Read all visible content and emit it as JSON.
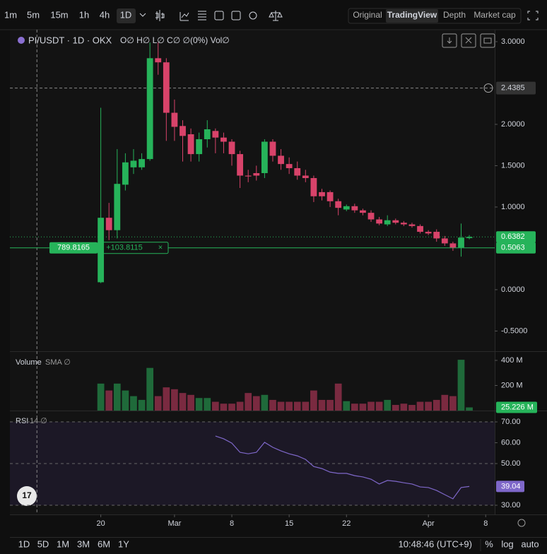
{
  "toolbar": {
    "intervals": [
      "1m",
      "5m",
      "15m",
      "1h",
      "4h",
      "1D"
    ],
    "views": [
      "Original",
      "TradingView",
      "Depth",
      "Market cap"
    ]
  },
  "chart_data": {
    "type": "candlestick",
    "title": "PI/USDT · 1D · OKX",
    "legend": "O∅ H∅ L∅ C∅ ∅(0%) Vol∅",
    "up_color": "#26b35a",
    "down_color": "#d8436a",
    "open": [
      0.09,
      0.87,
      0.72,
      1.27,
      1.48,
      1.48,
      1.58,
      2.8,
      2.75,
      2.14,
      1.98,
      1.88,
      1.64,
      1.82,
      1.92,
      1.84,
      1.79,
      1.64,
      1.38,
      1.41,
      1.41,
      1.79,
      1.62,
      1.52,
      1.47,
      1.38,
      1.35,
      1.18,
      1.18,
      1.07,
      0.97,
      1.01,
      0.96,
      0.93,
      0.85,
      0.79,
      0.84,
      0.81,
      0.79,
      0.77,
      0.7,
      0.7,
      0.62,
      0.56,
      0.51,
      0.624
    ],
    "high": [
      2.2,
      1.05,
      1.7,
      1.65,
      1.7,
      1.65,
      2.99,
      2.99,
      2.8,
      2.3,
      2.05,
      1.95,
      1.9,
      2.05,
      1.95,
      1.9,
      1.82,
      1.68,
      1.45,
      1.5,
      1.82,
      1.82,
      1.7,
      1.6,
      1.55,
      1.45,
      1.38,
      1.22,
      1.2,
      1.1,
      1.03,
      1.04,
      0.98,
      0.96,
      0.88,
      0.9,
      0.86,
      0.83,
      0.81,
      0.79,
      0.72,
      0.73,
      0.65,
      0.58,
      0.8,
      0.66
    ],
    "low": [
      0.08,
      0.6,
      0.62,
      1.2,
      1.4,
      1.45,
      1.56,
      2.6,
      1.8,
      1.8,
      1.55,
      1.55,
      1.55,
      1.72,
      1.65,
      1.65,
      1.5,
      1.23,
      1.3,
      1.32,
      1.35,
      1.55,
      1.45,
      1.4,
      1.33,
      1.3,
      1.06,
      1.08,
      1.0,
      0.9,
      0.95,
      0.93,
      0.9,
      0.82,
      0.78,
      0.77,
      0.79,
      0.77,
      0.75,
      0.68,
      0.66,
      0.58,
      0.53,
      0.47,
      0.4,
      0.61
    ],
    "close": [
      0.87,
      0.72,
      1.28,
      1.54,
      1.56,
      1.58,
      2.8,
      2.75,
      2.14,
      1.97,
      1.86,
      1.64,
      1.82,
      1.94,
      1.84,
      1.79,
      1.64,
      1.38,
      1.37,
      1.38,
      1.79,
      1.62,
      1.52,
      1.47,
      1.38,
      1.35,
      1.13,
      1.13,
      1.07,
      0.99,
      1.01,
      0.96,
      0.93,
      0.85,
      0.8,
      0.84,
      0.81,
      0.79,
      0.77,
      0.7,
      0.68,
      0.62,
      0.56,
      0.51,
      0.63,
      0.638
    ],
    "xlim": [
      -11.1,
      48.1
    ],
    "xticks": [
      {
        "value": 0,
        "label": "20"
      },
      {
        "value": 9,
        "label": "Mar"
      },
      {
        "value": 16,
        "label": "8"
      },
      {
        "value": 23,
        "label": "15"
      },
      {
        "value": 30,
        "label": "22"
      },
      {
        "value": 40,
        "label": "Apr"
      },
      {
        "value": 47,
        "label": "8"
      }
    ],
    "ylim": [
      -0.744,
      3.145
    ],
    "yticks": [
      {
        "value": 3,
        "label": "3.0000"
      },
      {
        "value": 2,
        "label": "2.0000"
      },
      {
        "value": 1.5,
        "label": "1.5000"
      },
      {
        "value": 1,
        "label": "1.0000"
      },
      {
        "value": 0,
        "label": "0.0000"
      },
      {
        "value": -0.5,
        "label": "-0.5000"
      }
    ],
    "crosshair": {
      "x": -7.8,
      "value": 2.4385,
      "label": "2.4385"
    },
    "last_price": {
      "value": 0.6382,
      "label": "0.6382"
    },
    "position_line": {
      "value": 0.5063,
      "label": "0.5063",
      "texts": [
        "789.8165",
        "+103.8115"
      ]
    },
    "volume": {
      "title": "Volume",
      "sub": "SMA ∅",
      "values": [
        215,
        160,
        215,
        160,
        115,
        85,
        340,
        115,
        185,
        170,
        140,
        125,
        100,
        100,
        70,
        55,
        55,
        70,
        140,
        115,
        125,
        85,
        70,
        70,
        70,
        70,
        160,
        85,
        85,
        215,
        75,
        55,
        55,
        70,
        70,
        85,
        45,
        55,
        45,
        70,
        70,
        85,
        125,
        115,
        405,
        25.226
      ],
      "value_labels_last": "25.226 M",
      "ylim": [
        0,
        467.6
      ],
      "yticks": [
        {
          "value": 400,
          "label": "400 M"
        },
        {
          "value": 200,
          "label": "200 M"
        }
      ]
    },
    "rsi": {
      "title": "RSI",
      "sub": "14 ∅",
      "color": "#7e67c9",
      "values": [
        null,
        null,
        null,
        null,
        null,
        null,
        null,
        null,
        null,
        null,
        null,
        null,
        null,
        null,
        63.2,
        61.9,
        59.8,
        55.4,
        54.7,
        55.4,
        60.2,
        57.8,
        56.1,
        54.7,
        53.7,
        52,
        48.6,
        47.6,
        45.9,
        45.3,
        45.3,
        44.2,
        43.6,
        42.5,
        40.2,
        41.9,
        41.5,
        40.8,
        40.2,
        38.8,
        38.5,
        37.1,
        35.1,
        33.1,
        38.5,
        39.04
      ],
      "last_label": "39.04",
      "ylim": [
        25.6,
        75.1
      ],
      "yticks": [
        {
          "value": 70,
          "label": "70.00"
        },
        {
          "value": 60,
          "label": "60.00"
        },
        {
          "value": 50,
          "label": "50.00"
        },
        {
          "value": 30,
          "label": "30.00"
        }
      ],
      "bands": [
        70,
        50,
        30
      ]
    }
  },
  "footer": {
    "ranges": [
      "1D",
      "5D",
      "1M",
      "3M",
      "6M",
      "1Y"
    ],
    "time": "10:48:46 (UTC+9)",
    "options": [
      "%",
      "log",
      "auto"
    ]
  }
}
